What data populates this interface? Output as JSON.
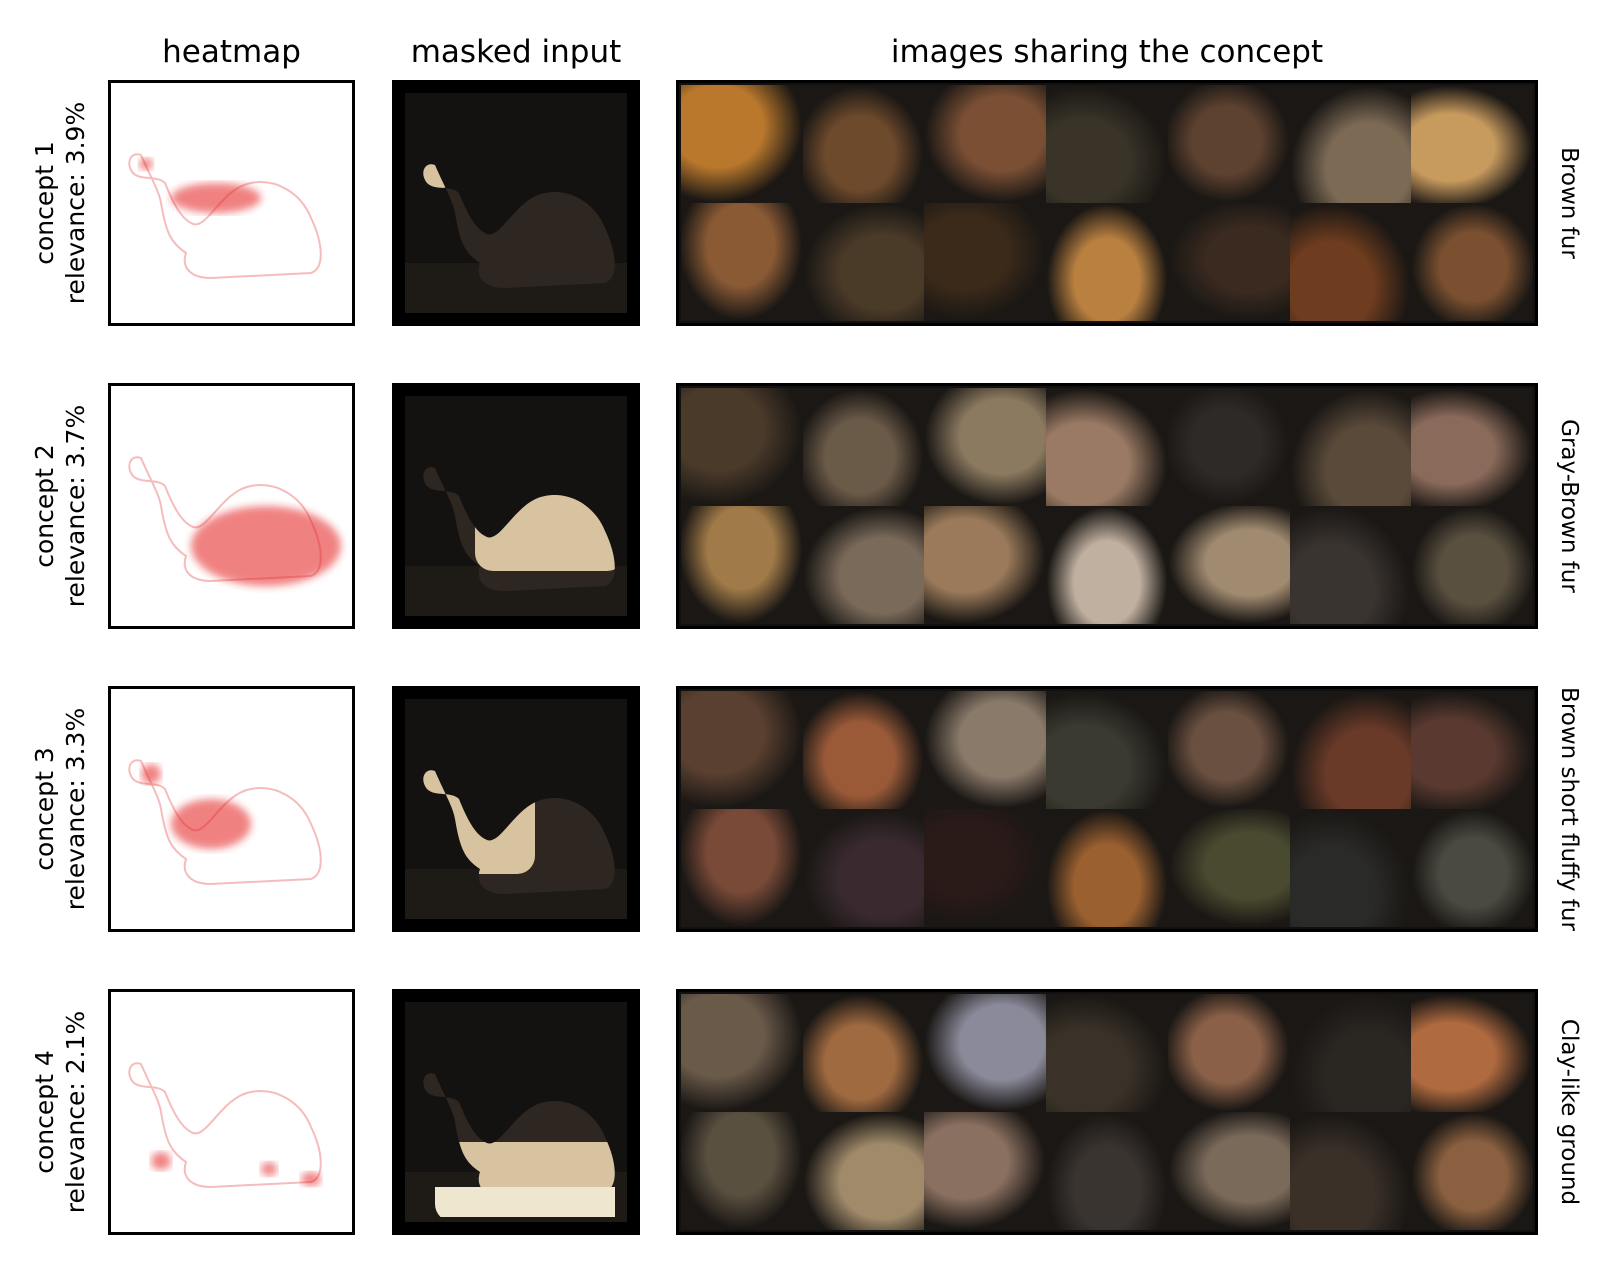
{
  "headers": {
    "heatmap": "heatmap",
    "masked_input": "masked input",
    "samples": "images sharing the concept"
  },
  "rows": [
    {
      "concept": "concept 1",
      "relevance": "relevance: 3.9%",
      "name": "Brown fur",
      "highlight": "head",
      "thumbs": [
        "#b9782c",
        "#6e4a2c",
        "#7a4f34",
        "#3a3428",
        "#5e4230",
        "#7c6a55",
        "#c79a5e",
        "#8a5a35",
        "#4a3a28",
        "#3b2a1a",
        "#b98040",
        "#3a2a20",
        "#6e3c1e",
        "#7a5030"
      ]
    },
    {
      "concept": "concept 2",
      "relevance": "relevance: 3.7%",
      "name": "Gray-Brown fur",
      "highlight": "body",
      "thumbs": [
        "#4a3a2a",
        "#6a5a48",
        "#8c7a60",
        "#9a7a64",
        "#2e2a28",
        "#5a4a3a",
        "#8a6a5a",
        "#a07a48",
        "#7a6a5a",
        "#9a7a5a",
        "#c0b0a0",
        "#a08a70",
        "#3a3430",
        "#5a5040"
      ]
    },
    {
      "concept": "concept 3",
      "relevance": "relevance: 3.3%",
      "name": "Brown short fluffy fur",
      "highlight": "neck",
      "thumbs": [
        "#5a4030",
        "#9a5a38",
        "#8a7a6a",
        "#3a3a30",
        "#6a5040",
        "#6a3a28",
        "#5a3a30",
        "#7a4a38",
        "#3a2a30",
        "#2a1a18",
        "#9a6030",
        "#4a4a30",
        "#2a2a28",
        "#4a4a40"
      ]
    },
    {
      "concept": "concept 4",
      "relevance": "relevance: 2.1%",
      "name": "Clay-like ground",
      "highlight": "ground",
      "thumbs": [
        "#6a5a4a",
        "#a06a40",
        "#8a8a9a",
        "#3a3228",
        "#8a6048",
        "#2a2622",
        "#b06a40",
        "#5a5040",
        "#a08a6a",
        "#8a7060",
        "#3a3430",
        "#7a6a5a",
        "#3a3028",
        "#8a6040"
      ]
    }
  ]
}
